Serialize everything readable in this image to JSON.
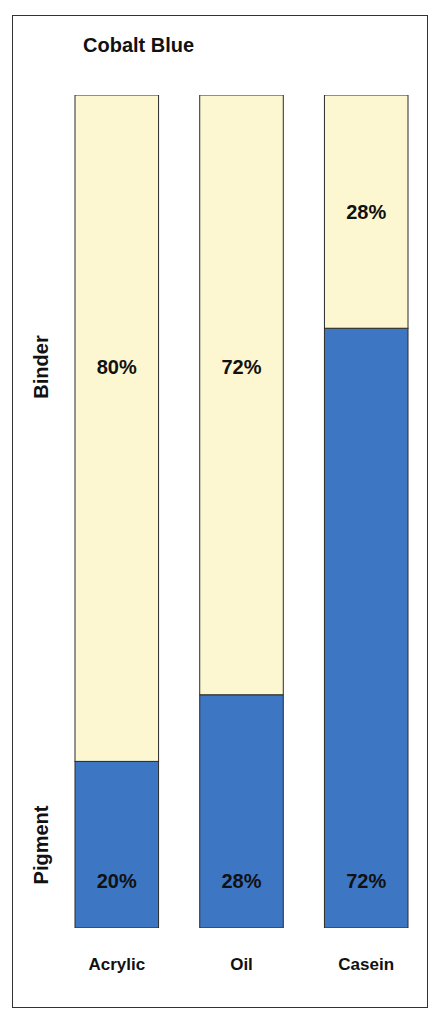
{
  "chart_data": {
    "type": "bar",
    "title": "Cobalt Blue",
    "categories": [
      "Acrylic",
      "Oil",
      "Casein"
    ],
    "series": [
      {
        "name": "Pigment",
        "color": "#3d77c4",
        "values": [
          20,
          28,
          72
        ],
        "value_labels": [
          "20%",
          "28%",
          "72%"
        ]
      },
      {
        "name": "Binder",
        "color": "#fcf7d0",
        "values": [
          80,
          72,
          28
        ],
        "value_labels": [
          "80%",
          "72%",
          "28%"
        ]
      }
    ],
    "ylim": [
      0,
      100
    ],
    "stacked": true,
    "data_labels": true,
    "tick_labels": "x"
  }
}
